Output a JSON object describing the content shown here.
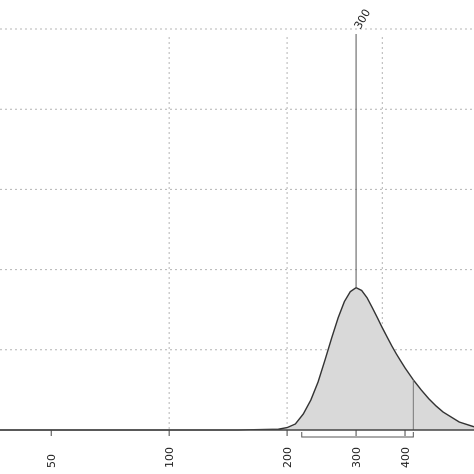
{
  "chart_data": {
    "type": "area",
    "title": "",
    "xlabel": "",
    "ylabel": "",
    "x_scale": "log",
    "xlim": [
      37,
      600
    ],
    "ylim": [
      0,
      1.05
    ],
    "x_ticks": [
      50,
      100,
      200,
      300,
      400
    ],
    "x_tick_labels": [
      "50",
      "100",
      "200",
      "300",
      "400"
    ],
    "grid_x": [
      100,
      200,
      350
    ],
    "grid_y": [
      0.2,
      0.4,
      0.6,
      0.8,
      1.0
    ],
    "grid": true,
    "series": [
      {
        "x": [
          37,
          60,
          100,
          150,
          190,
          200,
          210,
          220,
          230,
          240,
          250,
          260,
          270,
          280,
          290,
          300,
          310,
          320,
          330,
          340,
          350,
          360,
          370,
          380,
          390,
          400,
          420,
          440,
          460,
          480,
          500,
          550,
          600
        ],
        "y": [
          0,
          0,
          0,
          0,
          0.002,
          0.006,
          0.015,
          0.04,
          0.075,
          0.12,
          0.175,
          0.23,
          0.28,
          0.32,
          0.345,
          0.355,
          0.348,
          0.33,
          0.305,
          0.28,
          0.255,
          0.232,
          0.21,
          0.19,
          0.172,
          0.155,
          0.125,
          0.1,
          0.078,
          0.06,
          0.045,
          0.02,
          0.008
        ],
        "fill": "#d9d9d9",
        "stroke": "#333333"
      }
    ],
    "peak": {
      "x": 300,
      "label": "300"
    },
    "interval": [
      218,
      420
    ],
    "colors": {
      "grid": "#b4b4b4",
      "axis": "#444444",
      "fill": "#d9d9d9",
      "line": "#333333"
    }
  }
}
